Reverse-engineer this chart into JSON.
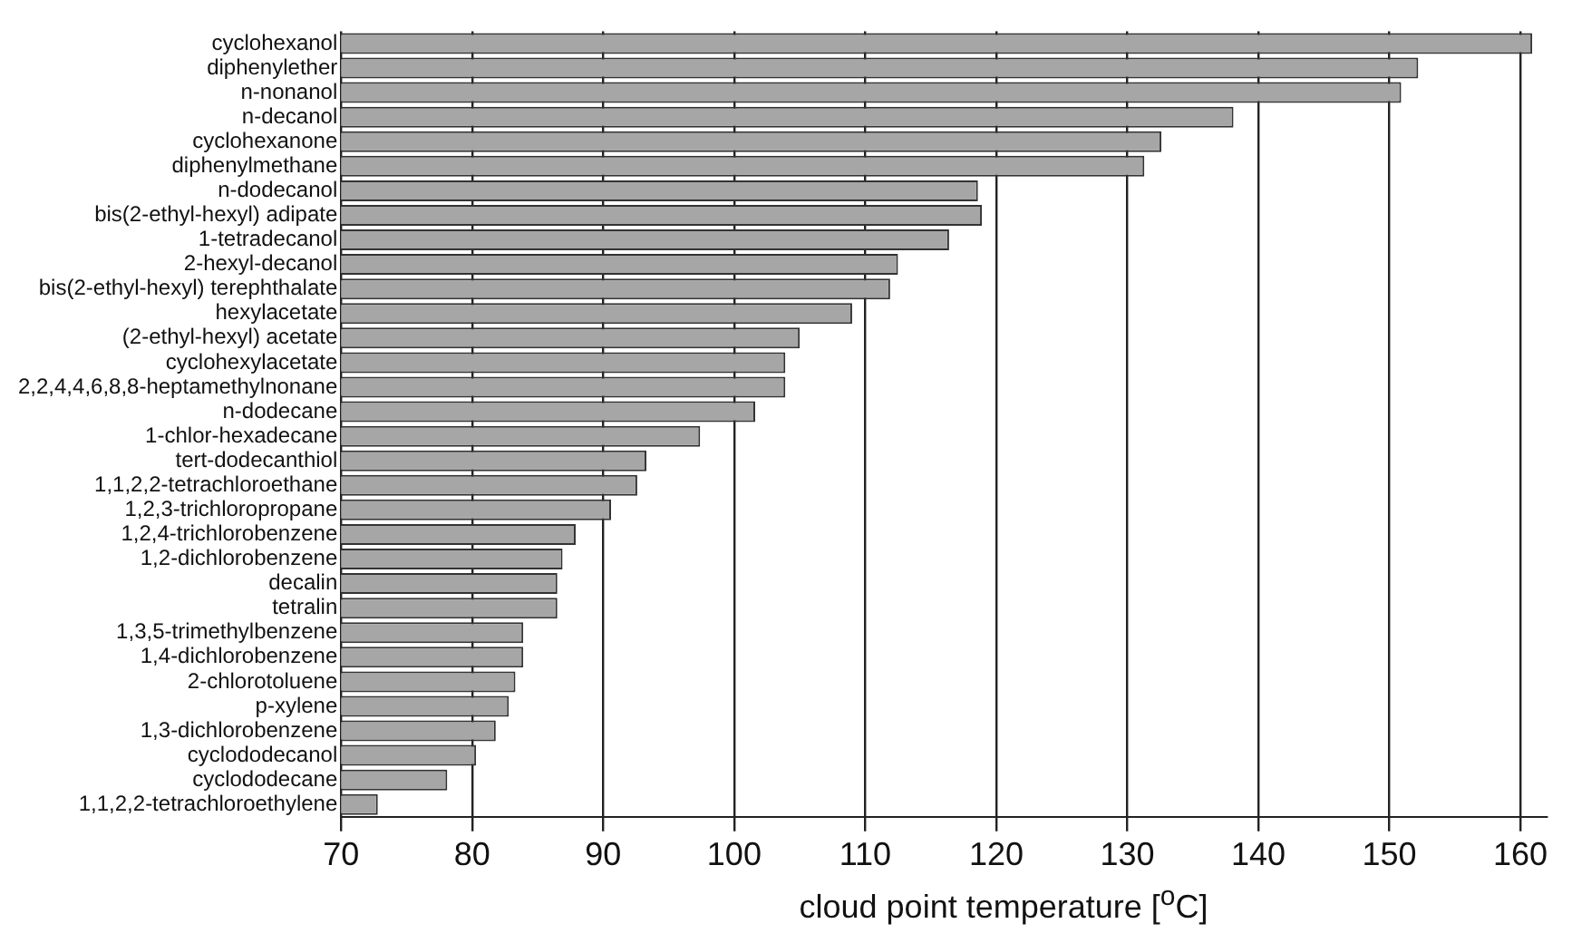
{
  "chart_data": {
    "type": "bar",
    "orientation": "horizontal",
    "xlabel": "cloud point temperature [$^{o}$C]",
    "categories": [
      "cyclohexanol",
      "diphenylether",
      "n-nonanol",
      "n-decanol",
      "cyclohexanone",
      "diphenylmethane",
      "n-dodecanol",
      "bis(2-ethyl-hexyl) adipate",
      "1-tetradecanol",
      "2-hexyl-decanol",
      "bis(2-ethyl-hexyl) terephthalate",
      "hexylacetate",
      "(2-ethyl-hexyl) acetate",
      "cyclohexylacetate",
      "2,2,4,4,6,8,8-heptamethylnonane",
      "n-dodecane",
      "1-chlor-hexadecane",
      "tert-dodecanthiol",
      "1,1,2,2-tetrachloroethane",
      "1,2,3-trichloropropane",
      "1,2,4-trichlorobenzene",
      "1,2-dichlorobenzene",
      "decalin",
      "tetralin",
      "1,3,5-trimethylbenzene",
      "1,4-dichlorobenzene",
      "2-chlorotoluene",
      "p-xylene",
      "1,3-dichlorobenzene",
      "cyclododecanol",
      "cyclododecane",
      "1,1,2,2-tetrachloroethylene"
    ],
    "values": [
      160.9,
      152.2,
      150.9,
      138.1,
      132.6,
      131.3,
      118.6,
      118.9,
      116.4,
      112.5,
      111.9,
      109.0,
      105.0,
      103.9,
      103.9,
      101.6,
      97.4,
      93.3,
      92.6,
      90.6,
      87.9,
      86.9,
      86.5,
      86.5,
      83.9,
      83.9,
      83.3,
      82.8,
      81.8,
      80.3,
      78.1,
      72.8
    ],
    "color": "#a6a6a6",
    "xlim": [
      70,
      162
    ],
    "xticks": [
      70,
      80,
      90,
      100,
      110,
      120,
      130,
      140,
      150,
      160
    ],
    "grid": "x"
  }
}
